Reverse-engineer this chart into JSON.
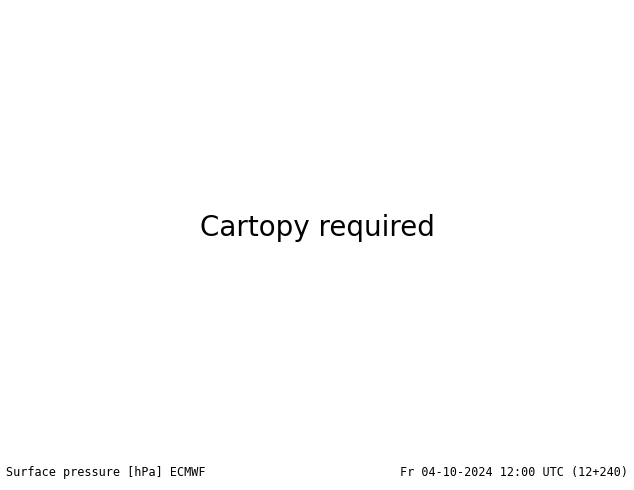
{
  "fig_width": 6.34,
  "fig_height": 4.9,
  "dpi": 100,
  "bottom_text_left": "Surface pressure [hPa] ECMWF",
  "bottom_text_right": "Fr 04-10-2024 12:00 UTC (12+240)",
  "font_size_bottom": 8.5,
  "lon_min": 25,
  "lon_max": 155,
  "lat_min": 5,
  "lat_max": 70,
  "ocean_color": "#a8c8e8",
  "land_color": "#d4e8b8",
  "mountain_color": "#c8a878",
  "red": "#cc0000",
  "blue": "#2244cc",
  "black": "#111111",
  "contour_lw": 1.2,
  "label_fs": 6.0
}
